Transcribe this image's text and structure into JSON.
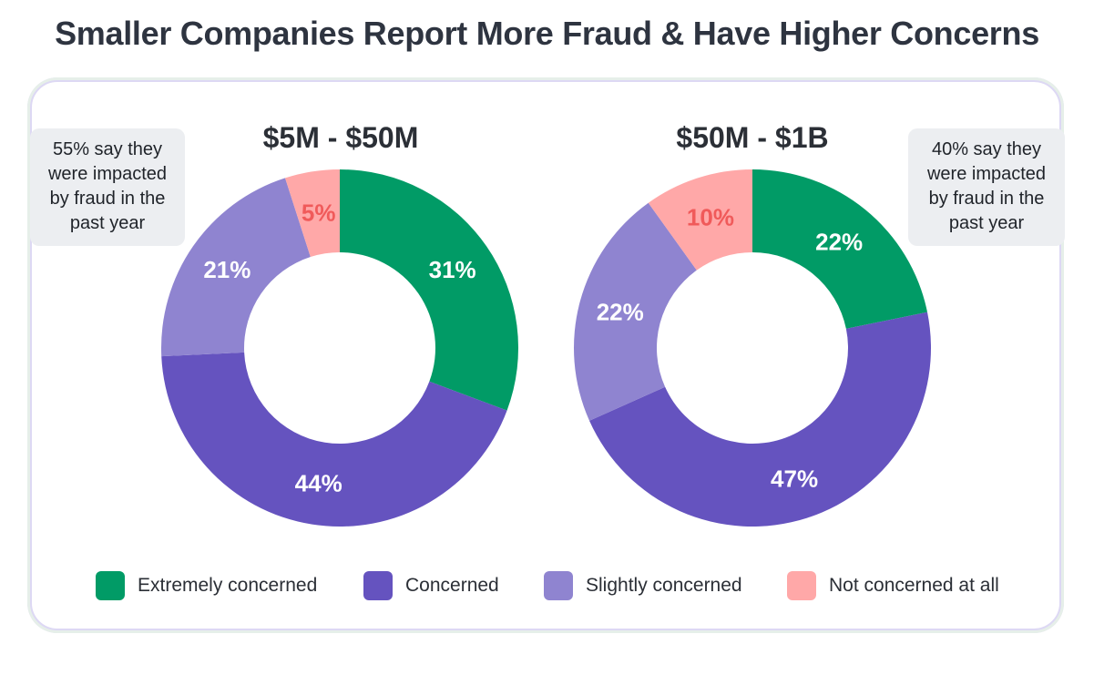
{
  "title": "Smaller Companies Report More Fraud & Have Higher Concerns",
  "colors": {
    "extremely_concerned": "#019b66",
    "concerned": "#6553bf",
    "slightly_concerned": "#8f84d0",
    "not_concerned": "#ffa8a8",
    "small_label_on_pink": "#f05a5a"
  },
  "notes": {
    "left": [
      "55% say they",
      "were impacted",
      "by fraud in the",
      "past year"
    ],
    "right": [
      "40% say they",
      "were impacted",
      "by fraud in the",
      "past year"
    ]
  },
  "legend": [
    {
      "label": "Extremely concerned",
      "color": "#019b66"
    },
    {
      "label": "Concerned",
      "color": "#6553bf"
    },
    {
      "label": "Slightly concerned",
      "color": "#8f84d0"
    },
    {
      "label": "Not concerned at all",
      "color": "#ffa8a8"
    }
  ],
  "chart_data": [
    {
      "type": "pie",
      "title": "$5M - $50M",
      "categories": [
        "Extremely concerned",
        "Concerned",
        "Slightly concerned",
        "Not concerned at all"
      ],
      "values": [
        31,
        44,
        21,
        5
      ],
      "labels": [
        "31%",
        "44%",
        "21%",
        "5%"
      ]
    },
    {
      "type": "pie",
      "title": "$50M - $1B",
      "categories": [
        "Extremely concerned",
        "Concerned",
        "Slightly concerned",
        "Not concerned at all"
      ],
      "values": [
        22,
        47,
        22,
        10
      ],
      "labels": [
        "22%",
        "47%",
        "22%",
        "10%"
      ]
    }
  ]
}
